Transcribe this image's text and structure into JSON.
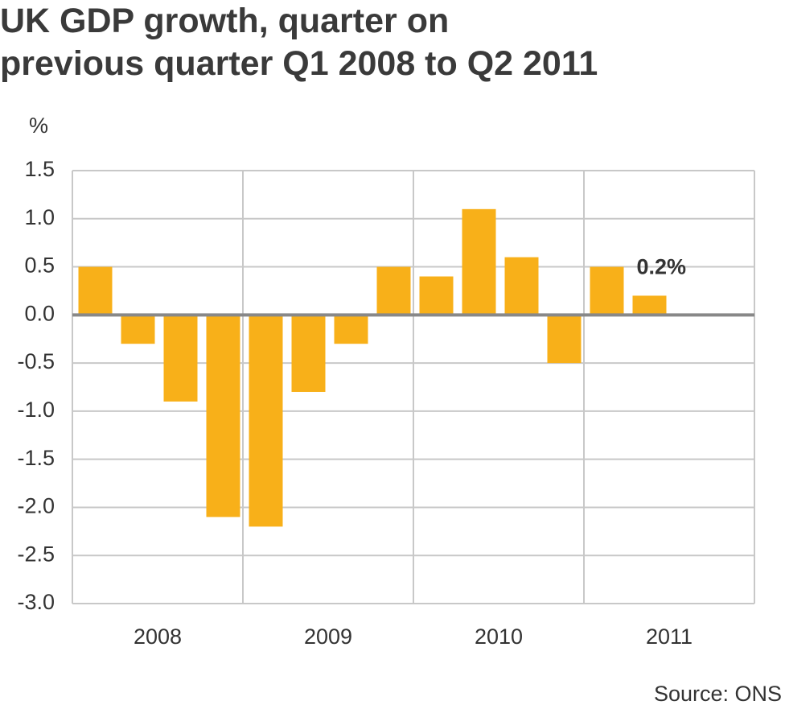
{
  "chart_data": {
    "type": "bar",
    "title": [
      "UK GDP growth, quarter on",
      "previous quarter Q1 2008 to Q2 2011"
    ],
    "y_label": "%",
    "source": "Source: ONS",
    "categories": [
      null,
      null,
      null,
      null,
      null,
      null,
      null,
      null,
      null,
      null,
      null,
      null,
      null,
      null
    ],
    "year_labels": [
      "2008",
      "2009",
      "2010",
      "2011"
    ],
    "values": [
      0.5,
      -0.3,
      -0.9,
      -2.1,
      -2.2,
      -0.8,
      -0.3,
      0.5,
      0.4,
      1.1,
      0.6,
      -0.5,
      0.5,
      0.2
    ],
    "value_labels": [
      null,
      null,
      null,
      null,
      null,
      null,
      null,
      null,
      null,
      null,
      null,
      null,
      null,
      "0.2%"
    ],
    "color": "#f8b019",
    "ylim": [
      -3.0,
      1.5
    ],
    "yticks": [
      1.5,
      {
        "value": 1.0,
        "label": "1.0"
      },
      0.5,
      {
        "value": 0.0,
        "label": "0.0"
      },
      -0.5,
      {
        "value": -1.0,
        "label": "-1.0"
      },
      -1.5,
      {
        "value": -2.0,
        "label": "-2.0"
      },
      -2.5,
      {
        "value": -3.0,
        "label": "-3.0"
      }
    ],
    "grid": true
  }
}
